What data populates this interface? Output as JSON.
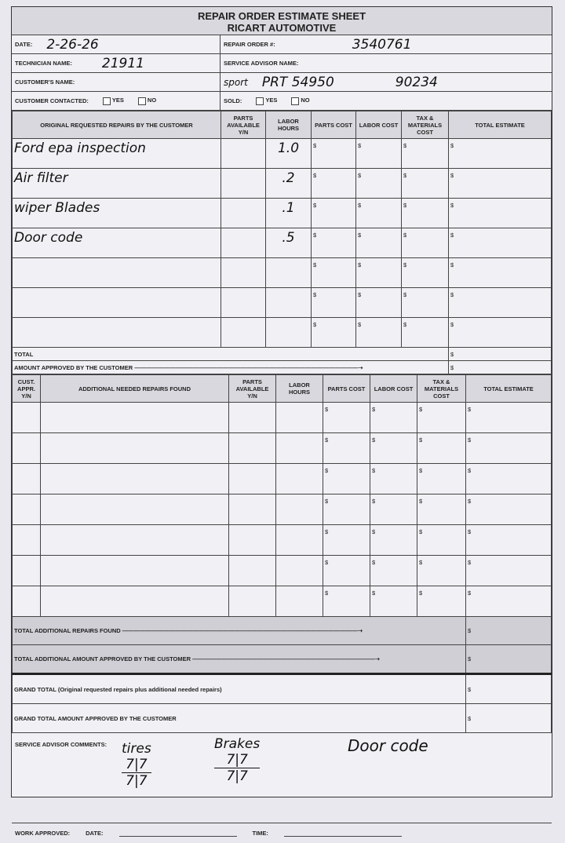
{
  "title": {
    "line1": "REPAIR ORDER ESTIMATE SHEET",
    "line2": "RICART AUTOMOTIVE"
  },
  "header": {
    "date_label": "DATE:",
    "date_value": "2-26-26",
    "repair_order_label": "REPAIR ORDER #:",
    "repair_order_value": "3540761",
    "technician_label": "TECHNICIAN NAME:",
    "technician_value": "21911",
    "advisor_label": "SERVICE ADVISOR NAME:",
    "customer_label": "CUSTOMER'S NAME:",
    "customer_note1": "sport",
    "customer_note2": "PRT 54950",
    "customer_note3": "90234",
    "contacted_label": "CUSTOMER CONTACTED:",
    "yes": "YES",
    "no": "NO",
    "sold_label": "SOLD:"
  },
  "original": {
    "headers": [
      "ORIGINAL REQUESTED REPAIRS BY THE CUSTOMER",
      "PARTS AVAILABLE Y/N",
      "LABOR HOURS",
      "PARTS COST",
      "LABOR COST",
      "TAX & MATERIALS COST",
      "TOTAL ESTIMATE"
    ],
    "rows": [
      {
        "desc": "Ford epa inspection",
        "hours": "1.0"
      },
      {
        "desc": "Air filter",
        "hours": ".2"
      },
      {
        "desc": "wiper Blades",
        "hours": ".1"
      },
      {
        "desc": "Door code",
        "hours": ".5"
      },
      {
        "desc": "",
        "hours": ""
      },
      {
        "desc": "",
        "hours": ""
      },
      {
        "desc": "",
        "hours": ""
      }
    ],
    "currency": "$",
    "total_label": "TOTAL",
    "approved_label": "AMOUNT APPROVED BY THE CUSTOMER"
  },
  "additional": {
    "headers": [
      "CUST. APPR. Y/N",
      "ADDITIONAL NEEDED REPAIRS FOUND",
      "PARTS AVAILABLE Y/N",
      "LABOR HOURS",
      "PARTS COST",
      "LABOR COST",
      "TAX & MATERIALS COST",
      "TOTAL ESTIMATE"
    ],
    "row_count": 7,
    "total_found_label": "TOTAL ADDITIONAL REPAIRS FOUND",
    "total_approved_label": "TOTAL ADDITIONAL AMOUNT APPROVED BY THE CUSTOMER"
  },
  "grand": {
    "total_label": "GRAND TOTAL (Original requested repairs plus additional needed repairs)",
    "approved_label": "GRAND TOTAL AMOUNT APPROVED BY THE CUSTOMER"
  },
  "comments": {
    "label": "SERVICE ADVISOR COMMENTS:",
    "note1": "tires",
    "note1_top": "7|7",
    "note1_bottom": "7|7",
    "note2": "Brakes",
    "note2_top": "7|7",
    "note2_bottom": "7|7",
    "note3": "Door code"
  },
  "footer": {
    "work_label": "WORK APPROVED:",
    "date_label": "DATE:",
    "time_label": "TIME:"
  }
}
